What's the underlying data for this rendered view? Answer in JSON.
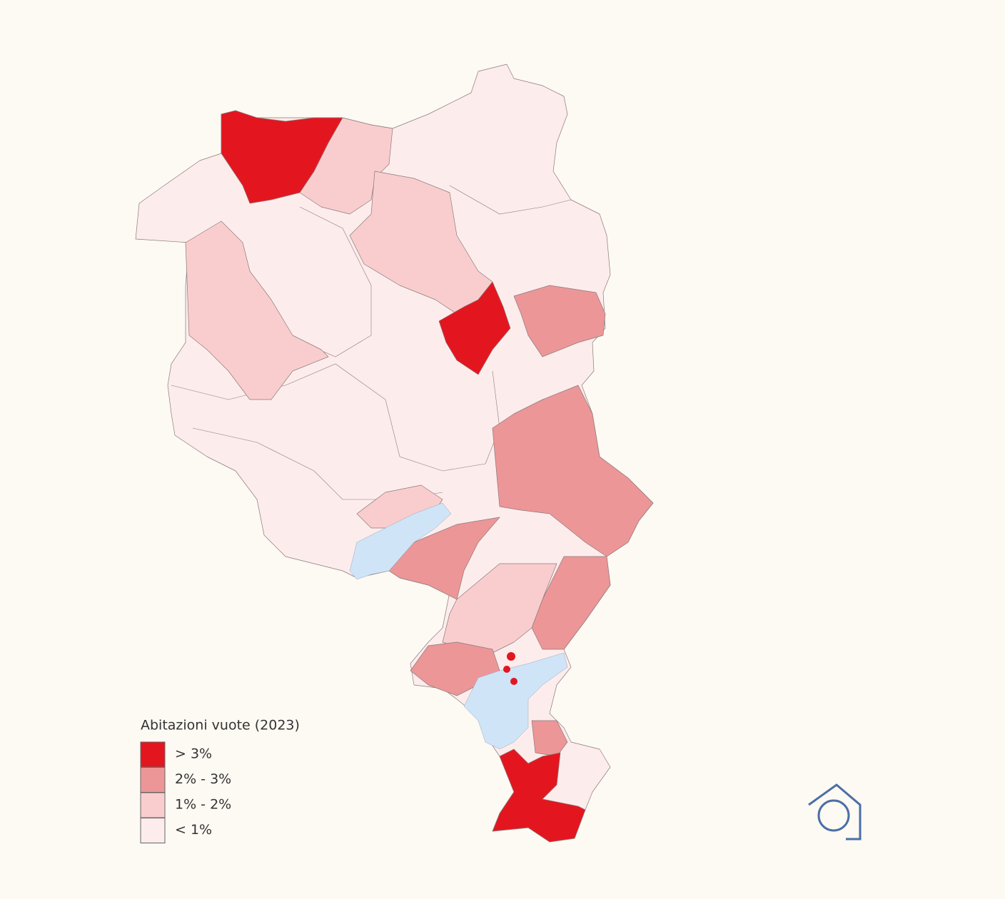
{
  "legend": {
    "title": "Abitazioni vuote (2023)",
    "items": [
      {
        "label": "> 3%",
        "color": "#e3161f"
      },
      {
        "label": "2% - 3%",
        "color": "#ec9698"
      },
      {
        "label": "1% - 2%",
        "color": "#f9cdce"
      },
      {
        "label": "< 1%",
        "color": "#fdecec"
      }
    ]
  }
}
